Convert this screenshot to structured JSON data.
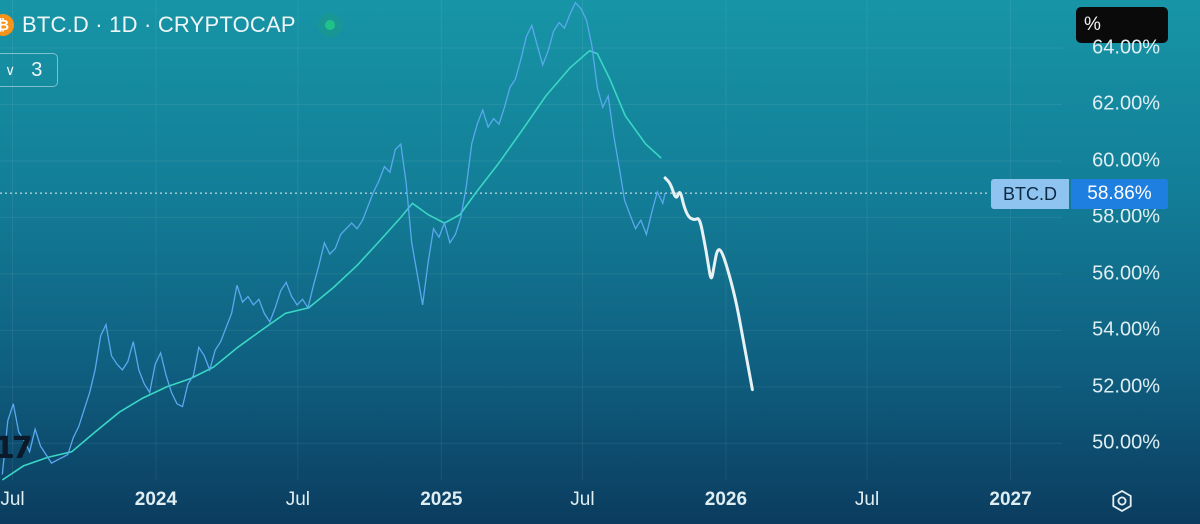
{
  "header": {
    "symbol_line": "BTC.D · 1D · CRYPTOCAP",
    "logo_glyph": "₿",
    "status_color": "#21c28a"
  },
  "indicator_toggle": {
    "chevron": "∨",
    "count": "3"
  },
  "scale_button": {
    "label": "%"
  },
  "price_tag": {
    "name": "BTC.D",
    "value": "58.86%"
  },
  "tv_logo_text": "17",
  "chart_data": {
    "type": "line",
    "title": "",
    "xlabel": "",
    "ylabel": "",
    "ylim": [
      48.7,
      65.7
    ],
    "xlim": [
      "2023-06-15",
      "2027-03-08"
    ],
    "y_ticks": [
      "50.00%",
      "52.00%",
      "54.00%",
      "56.00%",
      "58.00%",
      "60.00%",
      "62.00%",
      "64.00%"
    ],
    "y_tick_values": [
      50,
      52,
      54,
      56,
      58,
      60,
      62,
      64
    ],
    "x_ticks": [
      {
        "label": "Jul",
        "date": "2023-07-01",
        "bold": false
      },
      {
        "label": "2024",
        "date": "2024-01-01",
        "bold": true
      },
      {
        "label": "Jul",
        "date": "2024-07-01",
        "bold": false
      },
      {
        "label": "2025",
        "date": "2025-01-01",
        "bold": true
      },
      {
        "label": "Jul",
        "date": "2025-07-01",
        "bold": false
      },
      {
        "label": "2026",
        "date": "2026-01-01",
        "bold": true
      },
      {
        "label": "Jul",
        "date": "2026-07-01",
        "bold": false
      },
      {
        "label": "2027",
        "date": "2027-01-01",
        "bold": true
      }
    ],
    "last_value": 58.86,
    "grid": true,
    "colors": {
      "price": "#5aa8ee",
      "ma": "#3ad6c4",
      "projection": "#e8f2f4"
    },
    "series": [
      {
        "role": "price",
        "points": [
          [
            "2023-06-18",
            48.9
          ],
          [
            "2023-06-25",
            50.8
          ],
          [
            "2023-07-02",
            51.4
          ],
          [
            "2023-07-09",
            50.4
          ],
          [
            "2023-07-16",
            50.1
          ],
          [
            "2023-07-23",
            49.7
          ],
          [
            "2023-07-30",
            50.5
          ],
          [
            "2023-08-06",
            49.9
          ],
          [
            "2023-08-13",
            49.6
          ],
          [
            "2023-08-20",
            49.3
          ],
          [
            "2023-08-27",
            49.4
          ],
          [
            "2023-09-03",
            49.5
          ],
          [
            "2023-09-10",
            49.6
          ],
          [
            "2023-09-17",
            50.2
          ],
          [
            "2023-09-24",
            50.6
          ],
          [
            "2023-10-01",
            51.2
          ],
          [
            "2023-10-08",
            51.8
          ],
          [
            "2023-10-15",
            52.6
          ],
          [
            "2023-10-22",
            53.8
          ],
          [
            "2023-10-29",
            54.2
          ],
          [
            "2023-11-05",
            53.1
          ],
          [
            "2023-11-12",
            52.8
          ],
          [
            "2023-11-19",
            52.6
          ],
          [
            "2023-11-26",
            52.9
          ],
          [
            "2023-12-03",
            53.6
          ],
          [
            "2023-12-10",
            52.6
          ],
          [
            "2023-12-17",
            52.1
          ],
          [
            "2023-12-24",
            51.8
          ],
          [
            "2023-12-31",
            52.8
          ],
          [
            "2024-01-07",
            53.2
          ],
          [
            "2024-01-14",
            52.4
          ],
          [
            "2024-01-21",
            51.8
          ],
          [
            "2024-01-28",
            51.4
          ],
          [
            "2024-02-04",
            51.3
          ],
          [
            "2024-02-11",
            52.1
          ],
          [
            "2024-02-18",
            52.4
          ],
          [
            "2024-02-25",
            53.4
          ],
          [
            "2024-03-03",
            53.1
          ],
          [
            "2024-03-10",
            52.6
          ],
          [
            "2024-03-17",
            53.3
          ],
          [
            "2024-03-24",
            53.6
          ],
          [
            "2024-03-31",
            54.1
          ],
          [
            "2024-04-07",
            54.6
          ],
          [
            "2024-04-14",
            55.6
          ],
          [
            "2024-04-21",
            55.0
          ],
          [
            "2024-04-28",
            55.2
          ],
          [
            "2024-05-05",
            54.9
          ],
          [
            "2024-05-12",
            55.1
          ],
          [
            "2024-05-19",
            54.6
          ],
          [
            "2024-05-26",
            54.3
          ],
          [
            "2024-06-02",
            54.8
          ],
          [
            "2024-06-09",
            55.4
          ],
          [
            "2024-06-16",
            55.7
          ],
          [
            "2024-06-23",
            55.2
          ],
          [
            "2024-06-30",
            54.9
          ],
          [
            "2024-07-07",
            55.1
          ],
          [
            "2024-07-14",
            54.8
          ],
          [
            "2024-07-21",
            55.6
          ],
          [
            "2024-07-28",
            56.3
          ],
          [
            "2024-08-04",
            57.1
          ],
          [
            "2024-08-11",
            56.7
          ],
          [
            "2024-08-18",
            56.9
          ],
          [
            "2024-08-25",
            57.4
          ],
          [
            "2024-09-01",
            57.6
          ],
          [
            "2024-09-08",
            57.8
          ],
          [
            "2024-09-15",
            57.6
          ],
          [
            "2024-09-22",
            57.9
          ],
          [
            "2024-09-29",
            58.4
          ],
          [
            "2024-10-06",
            58.9
          ],
          [
            "2024-10-13",
            59.3
          ],
          [
            "2024-10-20",
            59.8
          ],
          [
            "2024-10-27",
            59.6
          ],
          [
            "2024-11-03",
            60.4
          ],
          [
            "2024-11-10",
            60.6
          ],
          [
            "2024-11-17",
            59.2
          ],
          [
            "2024-11-24",
            57.1
          ],
          [
            "2024-12-01",
            56.0
          ],
          [
            "2024-12-08",
            54.9
          ],
          [
            "2024-12-15",
            56.4
          ],
          [
            "2024-12-22",
            57.6
          ],
          [
            "2024-12-29",
            57.3
          ],
          [
            "2025-01-05",
            57.8
          ],
          [
            "2025-01-12",
            57.1
          ],
          [
            "2025-01-19",
            57.4
          ],
          [
            "2025-01-26",
            58.0
          ],
          [
            "2025-02-02",
            59.1
          ],
          [
            "2025-02-09",
            60.6
          ],
          [
            "2025-02-16",
            61.3
          ],
          [
            "2025-02-23",
            61.8
          ],
          [
            "2025-03-02",
            61.2
          ],
          [
            "2025-03-09",
            61.5
          ],
          [
            "2025-03-16",
            61.3
          ],
          [
            "2025-03-23",
            61.9
          ],
          [
            "2025-03-30",
            62.6
          ],
          [
            "2025-04-06",
            62.9
          ],
          [
            "2025-04-13",
            63.6
          ],
          [
            "2025-04-20",
            64.4
          ],
          [
            "2025-04-27",
            64.8
          ],
          [
            "2025-05-04",
            64.1
          ],
          [
            "2025-05-11",
            63.4
          ],
          [
            "2025-05-18",
            63.9
          ],
          [
            "2025-05-25",
            64.6
          ],
          [
            "2025-06-01",
            64.9
          ],
          [
            "2025-06-08",
            64.7
          ],
          [
            "2025-06-15",
            65.2
          ],
          [
            "2025-06-22",
            65.6
          ],
          [
            "2025-06-29",
            65.4
          ],
          [
            "2025-07-06",
            65.0
          ],
          [
            "2025-07-13",
            64.1
          ],
          [
            "2025-07-20",
            62.6
          ],
          [
            "2025-07-27",
            61.9
          ],
          [
            "2025-08-03",
            62.3
          ],
          [
            "2025-08-10",
            60.9
          ],
          [
            "2025-08-17",
            59.8
          ],
          [
            "2025-08-24",
            58.6
          ],
          [
            "2025-08-31",
            58.1
          ],
          [
            "2025-09-07",
            57.6
          ],
          [
            "2025-09-14",
            57.9
          ],
          [
            "2025-09-21",
            57.4
          ],
          [
            "2025-09-28",
            58.2
          ],
          [
            "2025-10-05",
            58.9
          ],
          [
            "2025-10-12",
            58.5
          ],
          [
            "2025-10-15",
            58.86
          ]
        ]
      },
      {
        "role": "ma",
        "points": [
          [
            "2023-06-18",
            48.7
          ],
          [
            "2023-07-15",
            49.2
          ],
          [
            "2023-08-15",
            49.5
          ],
          [
            "2023-09-15",
            49.7
          ],
          [
            "2023-10-15",
            50.4
          ],
          [
            "2023-11-15",
            51.1
          ],
          [
            "2023-12-15",
            51.6
          ],
          [
            "2024-01-15",
            52.0
          ],
          [
            "2024-02-15",
            52.3
          ],
          [
            "2024-03-15",
            52.7
          ],
          [
            "2024-04-15",
            53.4
          ],
          [
            "2024-05-15",
            54.0
          ],
          [
            "2024-06-15",
            54.6
          ],
          [
            "2024-07-15",
            54.8
          ],
          [
            "2024-08-15",
            55.5
          ],
          [
            "2024-09-15",
            56.3
          ],
          [
            "2024-10-15",
            57.2
          ],
          [
            "2024-11-10",
            58.0
          ],
          [
            "2024-11-25",
            58.5
          ],
          [
            "2024-12-15",
            58.1
          ],
          [
            "2025-01-05",
            57.8
          ],
          [
            "2025-01-25",
            58.1
          ],
          [
            "2025-02-15",
            58.9
          ],
          [
            "2025-03-15",
            59.9
          ],
          [
            "2025-04-15",
            61.1
          ],
          [
            "2025-05-15",
            62.3
          ],
          [
            "2025-06-15",
            63.3
          ],
          [
            "2025-07-10",
            63.9
          ],
          [
            "2025-07-20",
            63.8
          ],
          [
            "2025-08-05",
            62.9
          ],
          [
            "2025-08-25",
            61.6
          ],
          [
            "2025-09-20",
            60.6
          ],
          [
            "2025-10-10",
            60.1
          ]
        ]
      },
      {
        "role": "projection",
        "points": [
          [
            "2025-10-15",
            59.4
          ],
          [
            "2025-10-22",
            59.2
          ],
          [
            "2025-10-29",
            58.6
          ],
          [
            "2025-11-03",
            59.0
          ],
          [
            "2025-11-08",
            58.4
          ],
          [
            "2025-11-14",
            58.0
          ],
          [
            "2025-11-22",
            57.9
          ],
          [
            "2025-11-28",
            58.0
          ],
          [
            "2025-12-04",
            57.2
          ],
          [
            "2025-12-09",
            56.4
          ],
          [
            "2025-12-13",
            55.7
          ],
          [
            "2025-12-17",
            56.3
          ],
          [
            "2025-12-21",
            56.9
          ],
          [
            "2025-12-27",
            56.8
          ],
          [
            "2026-01-05",
            56.0
          ],
          [
            "2026-01-15",
            54.9
          ],
          [
            "2026-01-25",
            53.4
          ],
          [
            "2026-02-04",
            51.9
          ]
        ]
      }
    ]
  }
}
